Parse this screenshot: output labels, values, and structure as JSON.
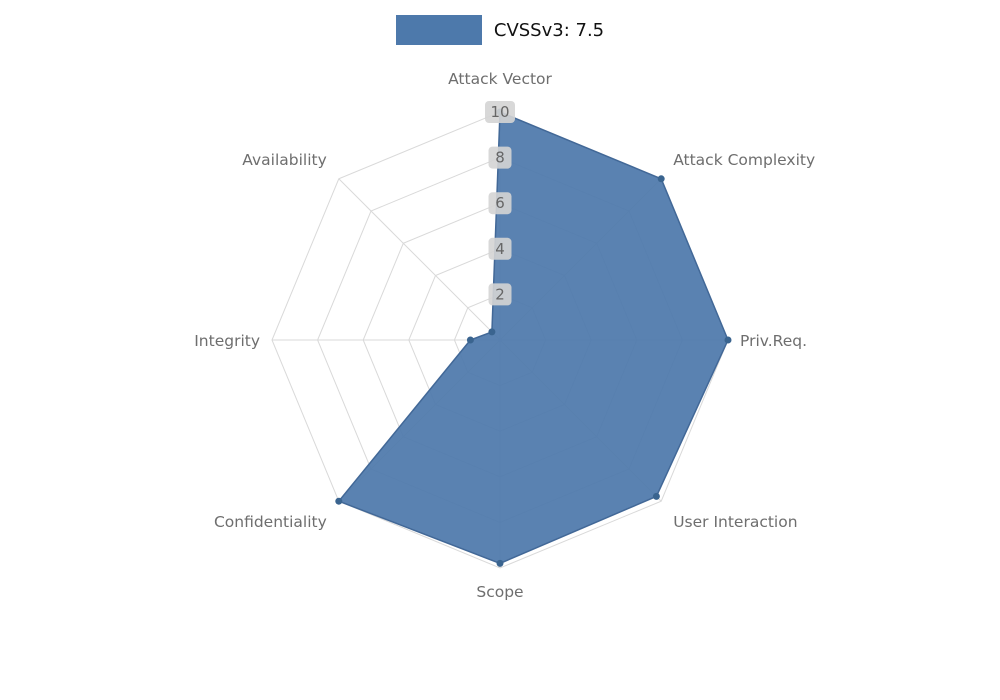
{
  "legend": {
    "label": "CVSSv3: 7.5"
  },
  "colors": {
    "fill": "#4d79ab",
    "edge": "#426897",
    "dot": "#3a648f",
    "grid": "#d9d9d9",
    "axis_label": "#6e6e6e",
    "tick_text": "#666666",
    "tick_box": "#d4d4d4",
    "background": "#ffffff"
  },
  "chart_data": {
    "type": "radar",
    "title": "CVSSv3: 7.5",
    "categories": [
      "Attack Vector",
      "Attack Complexity",
      "Priv.Req.",
      "User Interaction",
      "Scope",
      "Confidentiality",
      "Integrity",
      "Availability"
    ],
    "series": [
      {
        "name": "CVSSv3: 7.5",
        "values": [
          10,
          10,
          10,
          9.7,
          9.8,
          10,
          1.3,
          0.5
        ]
      }
    ],
    "ticks": [
      2,
      4,
      6,
      8,
      10
    ],
    "rlim": [
      0,
      10
    ],
    "direction": "clockwise",
    "start": "top",
    "grid": true,
    "legend_position": "top-center"
  }
}
